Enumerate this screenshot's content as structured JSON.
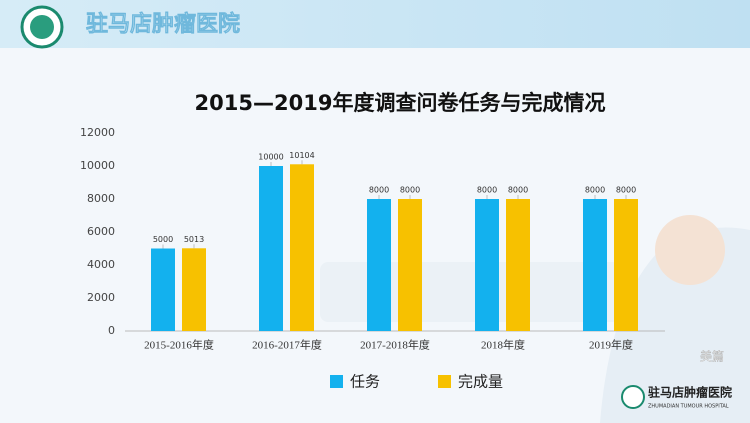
{
  "header": {
    "hospital_name": "驻马店肿瘤医院"
  },
  "chart_data": {
    "type": "bar",
    "title": "2015—2019年度调查问卷任务与完成情况",
    "categories": [
      "2015-2016年度",
      "2016-2017年度",
      "2017-2018年度",
      "2018年度",
      "2019年度"
    ],
    "series": [
      {
        "name": "任务",
        "color": "#13b1ee",
        "values": [
          5000,
          10000,
          8000,
          8000,
          8000
        ]
      },
      {
        "name": "完成量",
        "color": "#f7c100",
        "values": [
          5013,
          10104,
          8000,
          8000,
          8000
        ]
      }
    ],
    "ylim": [
      0,
      12000
    ],
    "yticks": [
      0,
      2000,
      4000,
      6000,
      8000,
      10000,
      12000
    ],
    "grid": false,
    "legend": "bottom"
  },
  "footer": {
    "logo_name": "驻马店肿瘤医院",
    "logo_subtitle": "ZHUMADIAN TUMOUR HOSPITAL",
    "watermark": "美篇"
  }
}
